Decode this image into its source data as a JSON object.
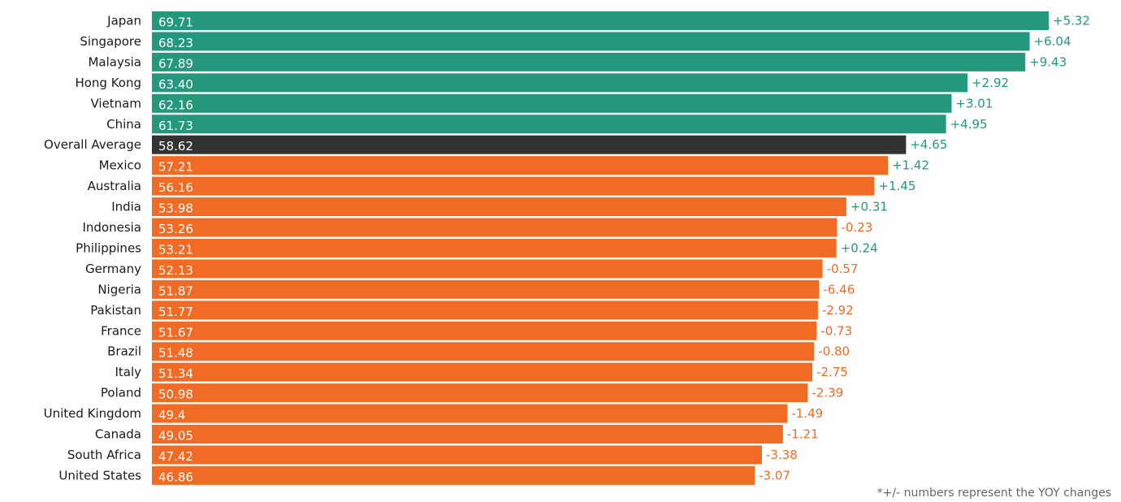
{
  "chart_data": {
    "type": "bar",
    "orientation": "horizontal",
    "categories": [
      "Japan",
      "Singapore",
      "Malaysia",
      "Hong Kong",
      "Vietnam",
      "China",
      "Overall Average",
      "Mexico",
      "Australia",
      "India",
      "Indonesia",
      "Philippines",
      "Germany",
      "Nigeria",
      "Pakistan",
      "France",
      "Brazil",
      "Italy",
      "Poland",
      "United Kingdom",
      "Canada",
      "South Africa",
      "United States"
    ],
    "value_labels": [
      "69.71",
      "68.23",
      "67.89",
      "63.40",
      "62.16",
      "61.73",
      "58.62",
      "57.21",
      "56.16",
      "53.98",
      "53.26",
      "53.21",
      "52.13",
      "51.87",
      "51.77",
      "51.67",
      "51.48",
      "51.34",
      "50.98",
      "49.4",
      "49.05",
      "47.42",
      "46.86"
    ],
    "values": [
      69.71,
      68.23,
      67.89,
      63.4,
      62.16,
      61.73,
      58.62,
      57.21,
      56.16,
      53.98,
      53.26,
      53.21,
      52.13,
      51.87,
      51.77,
      51.67,
      51.48,
      51.34,
      50.98,
      49.4,
      49.05,
      47.42,
      46.86
    ],
    "change_labels": [
      "+5.32",
      "+6.04",
      "+9.43",
      "+2.92",
      "+3.01",
      "+4.95",
      "+4.65",
      "+1.42",
      "+1.45",
      "+0.31",
      "-0.23",
      "+0.24",
      "-0.57",
      "-6.46",
      "-2.92",
      "-0.73",
      "-0.80",
      "-2.75",
      "-2.39",
      "-1.49",
      "-1.21",
      "-3.38",
      "-3.07"
    ],
    "changes": [
      5.32,
      6.04,
      9.43,
      2.92,
      3.01,
      4.95,
      4.65,
      1.42,
      1.45,
      0.31,
      -0.23,
      0.24,
      -0.57,
      -6.46,
      -2.92,
      -0.73,
      -0.8,
      -2.75,
      -2.39,
      -1.49,
      -1.21,
      -3.38,
      -3.07
    ],
    "groups": [
      "above",
      "above",
      "above",
      "above",
      "above",
      "above",
      "average",
      "below",
      "below",
      "below",
      "below",
      "below",
      "below",
      "below",
      "below",
      "below",
      "below",
      "below",
      "below",
      "below",
      "below",
      "below",
      "below"
    ],
    "colors": {
      "above": "#24987d",
      "average": "#333333",
      "below": "#f26b25",
      "positive_change": "#24987d",
      "negative_change": "#f26b25"
    },
    "xlim": [
      0,
      69.71
    ],
    "grid": false,
    "legend": "none"
  },
  "footnote": "*+/- numbers represent the YOY changes"
}
